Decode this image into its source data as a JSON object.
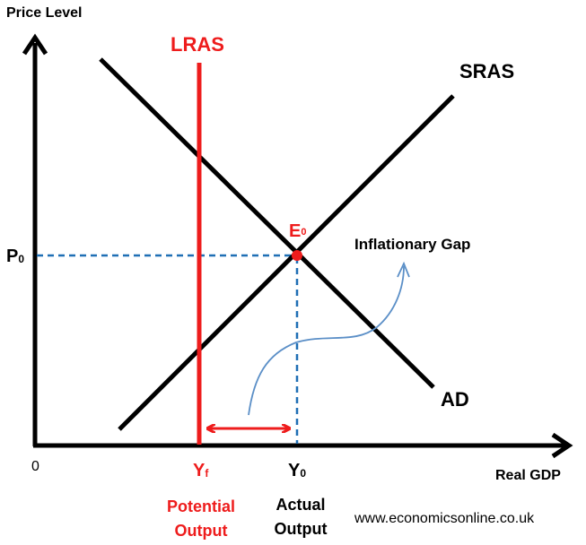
{
  "axes": {
    "y_label": "Price Level",
    "x_label": "Real GDP",
    "origin": "0"
  },
  "curves": {
    "lras": "LRAS",
    "sras": "SRAS",
    "ad": "AD"
  },
  "points": {
    "equilibrium": "E",
    "equilibrium_sub": "0",
    "price": "P",
    "price_sub": "0",
    "potential": "Y",
    "potential_sub": "f",
    "actual": "Y",
    "actual_sub": "0"
  },
  "annotations": {
    "gap": "Inflationary Gap",
    "potential_line1": "Potential",
    "potential_line2": "Output",
    "actual_line1": "Actual",
    "actual_line2": "Output"
  },
  "source": "www.economicsonline.co.uk",
  "colors": {
    "axis": "#000000",
    "lras": "#ee1c1c",
    "guide": "#1f6fb5",
    "gap_arrow": "#5b8fc7",
    "equilibrium": "#ee1c1c"
  }
}
